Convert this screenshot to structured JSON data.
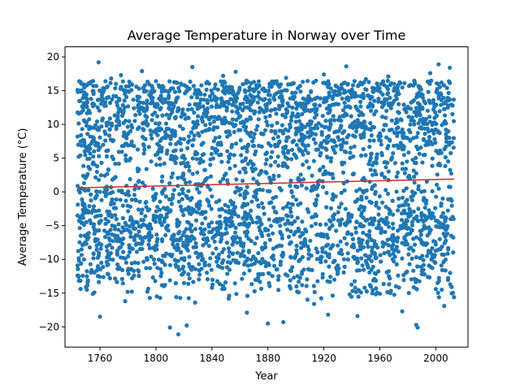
{
  "chart_data": {
    "type": "scatter",
    "title": "Average Temperature in Norway over Time",
    "xlabel": "Year",
    "ylabel": "Average Temperature (°C)",
    "xlim": [
      1735,
      2023
    ],
    "ylim": [
      -23,
      21.5
    ],
    "xticks": [
      1760,
      1800,
      1840,
      1880,
      1920,
      1960,
      2000
    ],
    "yticks": [
      -20,
      -15,
      -10,
      -5,
      0,
      5,
      10,
      15,
      20
    ],
    "grid": false,
    "legend": "none",
    "colors": {
      "points": "#1f77b4",
      "trend": "#d62728"
    },
    "data_range": {
      "x": [
        1744,
        2013
      ],
      "y": [
        -21.1,
        19.2
      ]
    },
    "trend_line": {
      "x": [
        1744,
        2013
      ],
      "y": [
        0.6,
        1.9
      ]
    },
    "series": [
      {
        "x": [
          1744,
          1744,
          1744,
          1744,
          1745,
          1745,
          1746,
          1748,
          1750,
          1752,
          1755,
          1756,
          1758,
          1759,
          1760,
          1762,
          1765,
          1768,
          1770,
          1772,
          1775,
          1778,
          1780,
          1783,
          1786,
          1790,
          1793,
          1796,
          1800,
          1803,
          1806,
          1809,
          1810,
          1812,
          1815,
          1816,
          1818,
          1820,
          1822,
          1824,
          1826,
          1828,
          1830,
          1833,
          1836,
          1840,
          1842,
          1845,
          1848,
          1850,
          1852,
          1855,
          1857,
          1860,
          1862,
          1865,
          1868,
          1870,
          1873,
          1876,
          1880,
          1883,
          1886,
          1889,
          1891,
          1893,
          1896,
          1900,
          1903,
          1906,
          1910,
          1913,
          1916,
          1920,
          1923,
          1926,
          1930,
          1933,
          1936,
          1940,
          1942,
          1944,
          1947,
          1950,
          1953,
          1956,
          1960,
          1963,
          1966,
          1970,
          1973,
          1976,
          1980,
          1983,
          1985,
          1986,
          1987,
          1988,
          1990,
          1993,
          1996,
          2000,
          2002,
          2004,
          2006,
          2008,
          2010,
          2011,
          2012,
          2013
        ],
        "y": [
          15.1,
          -12.4,
          8.2,
          -3.5,
          11.6,
          -10.2,
          5.4,
          -7.8,
          14.3,
          -6.1,
          12.7,
          -14.9,
          3.8,
          19.2,
          -18.5,
          13.4,
          -9.7,
          16.8,
          -2.4,
          10.5,
          17.3,
          -16.2,
          6.9,
          -12.8,
          15.6,
          17.9,
          -11.3,
          9.1,
          16.4,
          -15.7,
          4.2,
          14.8,
          -20.1,
          12.3,
          -8.6,
          -21.1,
          15.9,
          -13.5,
          -19.8,
          7.6,
          18.5,
          -16.4,
          11.2,
          -4.7,
          16.1,
          -14.2,
          13.9,
          -9.3,
          17.2,
          2.7,
          -15.8,
          14.5,
          17.8,
          -6.9,
          12.1,
          -17.9,
          8.8,
          16.3,
          -12.7,
          15.2,
          -19.5,
          5.9,
          14.6,
          -10.8,
          -19.3,
          16.9,
          -13.1,
          10.4,
          15.7,
          -7.4,
          13.8,
          -16.6,
          6.3,
          17.4,
          -18.2,
          12.9,
          -11.9,
          15.3,
          18.6,
          -8.1,
          14.1,
          -18.4,
          9.6,
          16.7,
          -13.8,
          11.5,
          -15.1,
          13.2,
          17.1,
          -10.3,
          15.8,
          -17.7,
          12.6,
          -9.9,
          16.2,
          -19.7,
          -20.1,
          14.7,
          -12.2,
          10.8,
          17.6,
          -14.4,
          18.9,
          13.6,
          -16.9,
          15.4,
          18.4,
          -6.5,
          12.8,
          -15.6
        ]
      }
    ]
  }
}
